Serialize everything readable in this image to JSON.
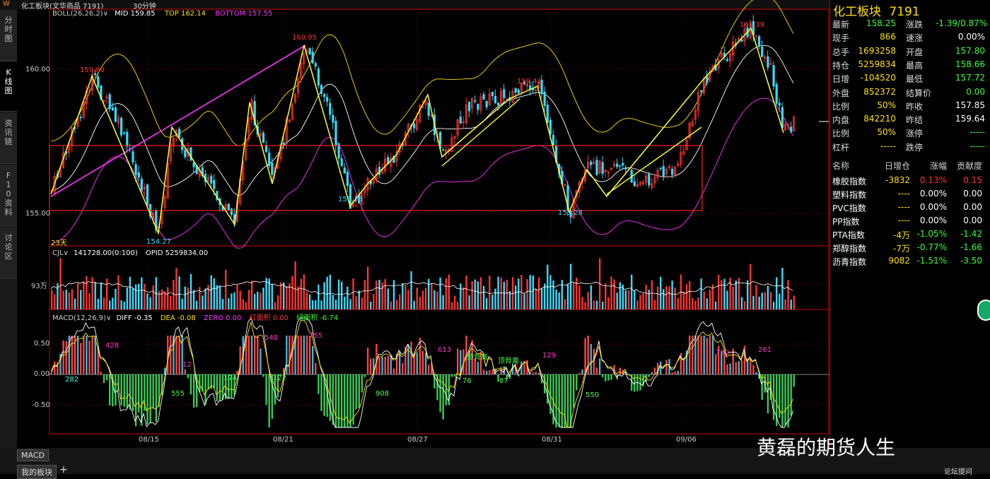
{
  "top_bar": {
    "logo": "W",
    "title": "化工板块(文华商品 7191)",
    "period": "30分钟"
  },
  "left_tabs": [
    "分时图",
    "K线图",
    "资讯链",
    "F10资料",
    "讨论区"
  ],
  "boll": {
    "label": "BOLL(26,26,2)",
    "mid": "MID 159.85",
    "top": "TOP 162.14",
    "bottom": "BOTTOM 157.55"
  },
  "price_axis": [
    "160.00",
    "155.00"
  ],
  "pivot_labels": [
    "159.80",
    "154.27",
    "160.95",
    "155.73",
    "159.41",
    "155.28",
    "161.39"
  ],
  "days_label": "23天",
  "volume": {
    "label": "CJL",
    "value": "141728.00(0:100)",
    "opid": "OPID 5259834.00",
    "axis": "93万"
  },
  "macd": {
    "label": "MACD(12,26,9)",
    "diff": "DIFF -0.35",
    "dea": "DEA -0.08",
    "zero": "ZERO 0.00",
    "red": "红面积 0.00",
    "green": "绿面积 -6.74",
    "axis": [
      "0.50",
      "0.00",
      "-0.50"
    ]
  },
  "macd_labels": [
    {
      "t": "282",
      "c": "#4fd"
    },
    {
      "t": "428",
      "c": "#f3c"
    },
    {
      "t": "555",
      "c": "#4f4"
    },
    {
      "t": "12",
      "c": "#f3c"
    },
    {
      "t": "174",
      "c": "#4f4"
    },
    {
      "t": "548",
      "c": "#f3c"
    },
    {
      "t": "122",
      "c": "#4f4"
    },
    {
      "t": "755",
      "c": "#f3c"
    },
    {
      "t": "908",
      "c": "#4f4"
    },
    {
      "t": "613",
      "c": "#f3c"
    },
    {
      "t": "顶背离",
      "c": "#4f4"
    },
    {
      "t": "76",
      "c": "#4f4"
    },
    {
      "t": "顶背离",
      "c": "#4f4"
    },
    {
      "t": "87",
      "c": "#4f4"
    },
    {
      "t": "129",
      "c": "#f3c"
    },
    {
      "t": "550",
      "c": "#4f4"
    },
    {
      "t": "730",
      "c": "#f3c"
    },
    {
      "t": "261",
      "c": "#f3c"
    }
  ],
  "dates": [
    "08/15",
    "08/21",
    "08/27",
    "08/31",
    "09/06"
  ],
  "quote": {
    "title": "化工板块",
    "code": "7191",
    "rows": [
      {
        "l1": "最新",
        "v1": "158.25",
        "c1": "#3f3",
        "l2": "涨跌",
        "v2": "-1.39/0.87%",
        "c2": "#3f3"
      },
      {
        "l1": "现手",
        "v1": "866",
        "c1": "#ffe000",
        "l2": "速涨",
        "v2": "0.00%",
        "c2": "#fff"
      },
      {
        "l1": "总手",
        "v1": "1693258",
        "c1": "#ffe000",
        "l2": "开盘",
        "v2": "157.80",
        "c2": "#3f3"
      },
      {
        "l1": "持仓",
        "v1": "5259834",
        "c1": "#ffe000",
        "l2": "最高",
        "v2": "158.66",
        "c2": "#3f3"
      },
      {
        "l1": "日增",
        "v1": "-104520",
        "c1": "#ffe000",
        "l2": "最低",
        "v2": "157.72",
        "c2": "#3f3"
      },
      {
        "l1": "外盘",
        "v1": "852372",
        "c1": "#ffe000",
        "l2": "结算价",
        "v2": "0.00",
        "c2": "#3f3"
      },
      {
        "l1": "比例",
        "v1": "50%",
        "c1": "#ffe000",
        "l2": "昨收",
        "v2": "157.85",
        "c2": "#fff"
      },
      {
        "l1": "内盘",
        "v1": "842210",
        "c1": "#ffe000",
        "l2": "昨结",
        "v2": "159.64",
        "c2": "#fff"
      },
      {
        "l1": "比例",
        "v1": "50%",
        "c1": "#ffe000",
        "l2": "涨停",
        "v2": "-----",
        "c2": "#3f3"
      },
      {
        "l1": "杠杆",
        "v1": "-----",
        "c1": "#ffe000",
        "l2": "跌停",
        "v2": "-----",
        "c2": "#3f3"
      }
    ],
    "table_headers": [
      "名称",
      "日增仓",
      "涨幅",
      "贡献度"
    ],
    "table_rows": [
      {
        "name": "橡胶指数",
        "inc": "-3832",
        "chg": "0.13%",
        "contrib": "0.15",
        "cc": "#f33"
      },
      {
        "name": "塑料指数",
        "inc": "----",
        "chg": "0.00%",
        "contrib": "0.00",
        "cc": "#fff"
      },
      {
        "name": "PVC指数",
        "inc": "----",
        "chg": "0.00%",
        "contrib": "0.00",
        "cc": "#fff"
      },
      {
        "name": "PP指数",
        "inc": "----",
        "chg": "0.00%",
        "contrib": "0.00",
        "cc": "#fff"
      },
      {
        "name": "PTA指数",
        "inc": "-4万",
        "chg": "-1.05%",
        "contrib": "-1.42",
        "cc": "#3f3"
      },
      {
        "name": "郑醇指数",
        "inc": "-7万",
        "chg": "-0.77%",
        "contrib": "-1.66",
        "cc": "#3f3"
      },
      {
        "name": "沥青指数",
        "inc": "9082",
        "chg": "-1.51%",
        "contrib": "-3.50",
        "cc": "#3f3"
      }
    ]
  },
  "bottom": {
    "macd_tab": "MACD",
    "my_sector": "我的板块",
    "add": "+",
    "forum": "论坛提问"
  },
  "watermark": "黄磊的期货人生",
  "colors": {
    "up": "#ff3333",
    "down": "#33ddff",
    "boll_mid": "#ffffff",
    "boll_top": "#ffe000",
    "boll_bottom": "#ff33ff",
    "trend": "#ffff33",
    "trend_long": "#ff33ff",
    "box": "#ff2020"
  }
}
